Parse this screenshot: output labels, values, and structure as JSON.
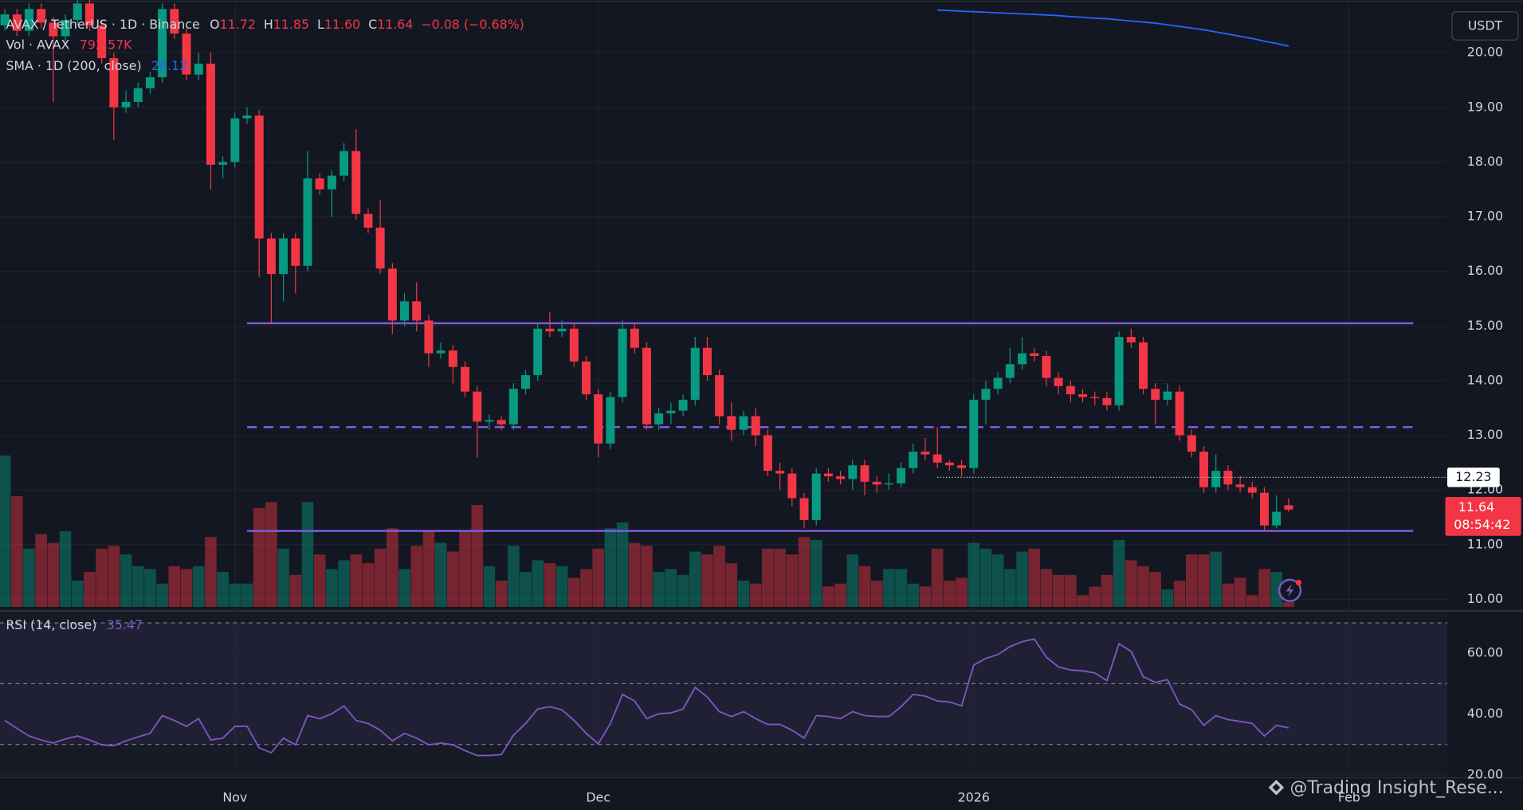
{
  "toolbar": {
    "currency": "USDT"
  },
  "watermark": "@Trading Insight_Rese...",
  "chart_data": {
    "type": "candlestick",
    "title": "AVAX / TetherUS · 1D · Binance",
    "legend_ohlc": [
      {
        "name": "O",
        "value": 11.72
      },
      {
        "name": "H",
        "value": 11.85
      },
      {
        "name": "L",
        "value": 11.6,
        "label": "11.60"
      },
      {
        "name": "C",
        "value": 11.64
      }
    ],
    "change": "−0.08 (−0.68%)",
    "categories": [
      null,
      null,
      null,
      null,
      null,
      null,
      null,
      null,
      null,
      null,
      null,
      null,
      null,
      null,
      null,
      null,
      null,
      null,
      null,
      null,
      null,
      null,
      null,
      null,
      null,
      null,
      null,
      null,
      null,
      null,
      null,
      null,
      null,
      null,
      null,
      null,
      null,
      null,
      null,
      null,
      null,
      null,
      null,
      null,
      null,
      null,
      null,
      null,
      null,
      null,
      null,
      null,
      null,
      null,
      null,
      null,
      null,
      null,
      null,
      null,
      null,
      null,
      null,
      null,
      null,
      null,
      null,
      null,
      null,
      null,
      null,
      null,
      null,
      null,
      null,
      null,
      null,
      null,
      null,
      null,
      null,
      null,
      null,
      null,
      null,
      null,
      null,
      null,
      null,
      null,
      null,
      null,
      null,
      null,
      null,
      null,
      null,
      null,
      null,
      null,
      null,
      null,
      null,
      null,
      null,
      null,
      null
    ],
    "xlim": [
      -0.4,
      119.1
    ],
    "xticks": [
      {
        "value": 19,
        "label": "Nov"
      },
      {
        "value": 49,
        "label": "Dec"
      },
      {
        "value": 80,
        "label": "2026"
      },
      {
        "value": 111,
        "label": "Feb"
      }
    ],
    "open": [
      20.5,
      20.7,
      20.4,
      20.8,
      20.55,
      20.3,
      20.6,
      20.9,
      20.5,
      19.9,
      19.0,
      19.1,
      19.35,
      19.55,
      20.8,
      20.35,
      19.6,
      19.8,
      17.95,
      18.0,
      18.8,
      18.85,
      16.6,
      15.95,
      16.6,
      16.1,
      17.7,
      17.5,
      17.75,
      18.2,
      17.05,
      16.8,
      16.05,
      15.1,
      15.45,
      15.1,
      14.5,
      14.55,
      14.25,
      13.8,
      13.25,
      13.28,
      13.2,
      13.85,
      14.1,
      14.95,
      14.9,
      14.95,
      14.35,
      13.75,
      12.85,
      13.7,
      14.95,
      14.6,
      13.2,
      13.4,
      13.45,
      13.65,
      14.6,
      14.1,
      13.35,
      13.1,
      13.35,
      13.0,
      12.35,
      12.3,
      11.85,
      11.45,
      12.3,
      12.25,
      12.2,
      12.45,
      12.15,
      12.1,
      12.12,
      12.4,
      12.7,
      12.65,
      12.5,
      12.45,
      12.4,
      13.65,
      13.85,
      14.05,
      14.3,
      14.5,
      14.45,
      14.05,
      13.9,
      13.75,
      13.7,
      13.68,
      13.55,
      14.8,
      14.7,
      13.85,
      13.65,
      13.8,
      13.0,
      12.7,
      12.05,
      12.35,
      12.1,
      12.05,
      11.95,
      11.35,
      11.72
    ],
    "high": [
      20.8,
      20.8,
      20.9,
      20.9,
      20.65,
      20.7,
      21.0,
      21.0,
      20.6,
      20.0,
      19.3,
      19.45,
      19.65,
      20.9,
      20.9,
      20.45,
      20.0,
      20.0,
      18.1,
      18.9,
      19.0,
      18.95,
      16.7,
      16.7,
      16.7,
      18.2,
      17.8,
      17.85,
      18.35,
      18.6,
      17.15,
      17.3,
      16.15,
      15.6,
      15.8,
      15.2,
      14.7,
      14.65,
      14.35,
      13.9,
      13.38,
      13.35,
      13.95,
      14.2,
      15.05,
      15.25,
      15.1,
      15.05,
      14.45,
      13.85,
      13.8,
      15.1,
      15.05,
      14.7,
      13.5,
      13.6,
      13.75,
      14.8,
      14.8,
      14.2,
      13.6,
      13.45,
      13.5,
      13.1,
      12.5,
      12.4,
      11.95,
      12.4,
      12.4,
      12.35,
      12.55,
      12.55,
      12.25,
      12.3,
      12.5,
      12.85,
      12.95,
      13.15,
      12.55,
      12.55,
      13.75,
      14.0,
      14.15,
      14.6,
      14.8,
      14.6,
      14.55,
      14.15,
      14.0,
      13.85,
      13.8,
      13.8,
      14.9,
      14.95,
      14.8,
      13.95,
      13.95,
      13.9,
      13.1,
      12.8,
      12.65,
      12.45,
      12.25,
      12.15,
      12.05,
      11.9,
      11.85
    ],
    "low": [
      20.4,
      20.3,
      20.3,
      20.45,
      19.1,
      20.2,
      20.5,
      20.4,
      19.8,
      18.4,
      18.9,
      19.0,
      19.25,
      19.45,
      20.25,
      19.5,
      19.5,
      17.5,
      17.7,
      17.9,
      18.7,
      15.9,
      15.05,
      15.45,
      15.6,
      16.0,
      17.4,
      17.0,
      17.65,
      16.95,
      16.7,
      15.95,
      14.85,
      15.0,
      14.9,
      14.25,
      14.4,
      13.95,
      13.7,
      12.6,
      13.1,
      13.1,
      13.1,
      13.75,
      14.0,
      14.8,
      14.8,
      14.25,
      13.65,
      12.6,
      12.75,
      13.6,
      14.5,
      13.1,
      13.1,
      13.2,
      13.35,
      13.55,
      14.0,
      13.2,
      12.9,
      13.0,
      12.8,
      12.25,
      12.0,
      11.7,
      11.3,
      11.35,
      12.15,
      12.1,
      12.0,
      11.9,
      11.95,
      12.0,
      12.05,
      12.3,
      12.55,
      12.4,
      12.35,
      12.25,
      12.3,
      13.2,
      13.75,
      13.95,
      14.2,
      14.35,
      13.9,
      13.75,
      13.6,
      13.6,
      13.55,
      13.45,
      13.45,
      14.6,
      13.75,
      13.2,
      13.55,
      12.9,
      12.6,
      11.95,
      11.95,
      12.0,
      11.95,
      11.85,
      11.25,
      11.3,
      11.6
    ],
    "close": [
      20.7,
      20.4,
      20.8,
      20.55,
      20.3,
      20.6,
      20.9,
      20.5,
      19.9,
      19.0,
      19.1,
      19.35,
      19.55,
      20.8,
      20.35,
      19.6,
      19.8,
      17.95,
      18.0,
      18.8,
      18.85,
      16.6,
      15.95,
      16.6,
      16.1,
      17.7,
      17.5,
      17.75,
      18.2,
      17.05,
      16.8,
      16.05,
      15.1,
      15.45,
      15.1,
      14.5,
      14.55,
      14.25,
      13.8,
      13.25,
      13.28,
      13.2,
      13.85,
      14.1,
      14.95,
      14.9,
      14.95,
      14.35,
      13.75,
      12.85,
      13.7,
      14.95,
      14.6,
      13.2,
      13.4,
      13.45,
      13.65,
      14.6,
      14.1,
      13.35,
      13.1,
      13.35,
      13.0,
      12.35,
      12.3,
      11.85,
      11.45,
      12.3,
      12.25,
      12.2,
      12.45,
      12.15,
      12.1,
      12.12,
      12.4,
      12.7,
      12.65,
      12.5,
      12.45,
      12.4,
      13.65,
      13.85,
      14.05,
      14.3,
      14.5,
      14.45,
      14.05,
      13.9,
      13.75,
      13.7,
      13.68,
      13.55,
      14.8,
      14.7,
      13.85,
      13.65,
      13.8,
      13.0,
      12.7,
      12.05,
      12.35,
      12.1,
      12.05,
      11.95,
      11.35,
      11.6,
      11.64
    ],
    "ylim": [
      9.86,
      20.96
    ],
    "yticks": [
      {
        "value": 10,
        "label": "10.00"
      },
      {
        "value": 11,
        "label": "11.00"
      },
      {
        "value": 12,
        "label": "12.00"
      },
      {
        "value": 13,
        "label": "13.00"
      },
      {
        "value": 14,
        "label": "14.00"
      },
      {
        "value": 15,
        "label": "15.00"
      },
      {
        "value": 16,
        "label": "16.00"
      },
      {
        "value": 17,
        "label": "17.00"
      },
      {
        "value": 18,
        "label": "18.00"
      },
      {
        "value": 19,
        "label": "19.00"
      },
      {
        "value": 20,
        "label": "20.00"
      }
    ],
    "grid": true,
    "up_color": "#089981",
    "down_color": "#f23645",
    "volume": {
      "name": "Vol · AVAX",
      "legend_value": {
        "value": 792.57,
        "label": "792.57K"
      },
      "ylim": [
        0,
        27000
      ],
      "values": [
        26000,
        19000,
        10000,
        12500,
        11000,
        13000,
        4500,
        6000,
        10000,
        10500,
        9000,
        7000,
        6500,
        4000,
        7000,
        6500,
        7000,
        12000,
        6000,
        4000,
        4000,
        17000,
        18000,
        10000,
        5500,
        18000,
        9000,
        6500,
        8000,
        9000,
        7500,
        10000,
        13500,
        6500,
        10500,
        13000,
        11000,
        9500,
        13000,
        17500,
        7000,
        4500,
        10500,
        6000,
        8000,
        7500,
        7000,
        5000,
        6500,
        10000,
        13500,
        14500,
        11000,
        10500,
        6000,
        6500,
        5500,
        9500,
        9000,
        10500,
        7500,
        4500,
        4000,
        10000,
        10000,
        9000,
        12000,
        11500,
        3500,
        4000,
        9000,
        7000,
        4500,
        6500,
        6500,
        4000,
        3500,
        10000,
        4500,
        5000,
        11000,
        10000,
        9000,
        6500,
        9500,
        10000,
        6500,
        5500,
        5500,
        2000,
        3500,
        5500,
        11500,
        8000,
        7000,
        6000,
        3000,
        4500,
        9000,
        9000,
        9500,
        4000,
        5000,
        2000,
        6500,
        6000,
        792.57
      ]
    },
    "sma": {
      "name": "SMA · 1D (200, close)",
      "legend_value": 20.12,
      "color": "#2962ff",
      "values": [
        null,
        null,
        null,
        null,
        null,
        null,
        null,
        null,
        null,
        null,
        null,
        null,
        null,
        null,
        null,
        null,
        null,
        null,
        null,
        null,
        null,
        null,
        null,
        null,
        null,
        null,
        null,
        null,
        null,
        null,
        null,
        null,
        null,
        null,
        null,
        null,
        null,
        null,
        null,
        null,
        null,
        null,
        null,
        null,
        null,
        null,
        null,
        null,
        null,
        null,
        null,
        null,
        null,
        null,
        null,
        null,
        null,
        null,
        null,
        null,
        null,
        null,
        null,
        null,
        null,
        null,
        null,
        null,
        null,
        null,
        null,
        null,
        null,
        null,
        null,
        null,
        null,
        20.78,
        20.77,
        20.76,
        20.75,
        20.74,
        20.73,
        20.72,
        20.71,
        20.7,
        20.69,
        20.68,
        20.66,
        20.65,
        20.63,
        20.62,
        20.6,
        20.58,
        20.56,
        20.54,
        20.51,
        20.48,
        20.45,
        20.42,
        20.38,
        20.34,
        20.3,
        20.26,
        20.21,
        20.17,
        20.12
      ]
    },
    "levels": [
      {
        "value": 15.05,
        "style": "solid"
      },
      {
        "value": 13.15,
        "style": "dashed"
      },
      {
        "value": 11.25,
        "style": "solid"
      }
    ],
    "level_color": "#7c5cdb",
    "marker": {
      "value": 12.23
    },
    "last_price": 11.64,
    "countdown": "08:54:42",
    "rsi": {
      "name": "RSI (14, close)",
      "legend_value": 35.47,
      "color": "#7e57c2",
      "ylim": [
        19.4,
        73
      ],
      "yticks": [
        {
          "value": 20,
          "label": "20.00"
        },
        {
          "value": 40,
          "label": "40.00"
        },
        {
          "value": 60,
          "label": "60.00"
        }
      ],
      "bands": [
        70,
        50,
        30
      ],
      "values": [
        37.9,
        35.3,
        32.8,
        31.5,
        30.5,
        31.8,
        32.8,
        31.5,
        29.9,
        29.6,
        31.2,
        32.5,
        33.7,
        39.5,
        37.9,
        36,
        38.5,
        31.5,
        32.1,
        36,
        36,
        28.9,
        27.3,
        32.1,
        29.9,
        39.5,
        38.5,
        40.1,
        42.7,
        37.9,
        36.9,
        34.7,
        31.2,
        33.7,
        32.1,
        29.9,
        30.5,
        29.9,
        28,
        26.4,
        26.4,
        26.7,
        33.1,
        36.9,
        41.7,
        42.4,
        41.4,
        37.9,
        33.7,
        30.2,
        36.9,
        46.5,
        44.3,
        38.5,
        40.1,
        40.4,
        41.7,
        48.8,
        45.6,
        40.8,
        39.2,
        40.8,
        38.5,
        36.6,
        36.6,
        34.7,
        32.1,
        39.5,
        39.2,
        38.5,
        40.8,
        39.5,
        39.2,
        39.2,
        42.4,
        46.5,
        45.9,
        44.3,
        44,
        42.7,
        56.1,
        58.3,
        59.6,
        62.2,
        63.8,
        64.7,
        58.7,
        55.5,
        54.5,
        54.2,
        53.5,
        51,
        63.1,
        60.6,
        52.3,
        50.4,
        51.3,
        43.3,
        41.4,
        36.3,
        39.5,
        38.2,
        37.6,
        36.9,
        32.8,
        36.3,
        35.47
      ]
    }
  }
}
